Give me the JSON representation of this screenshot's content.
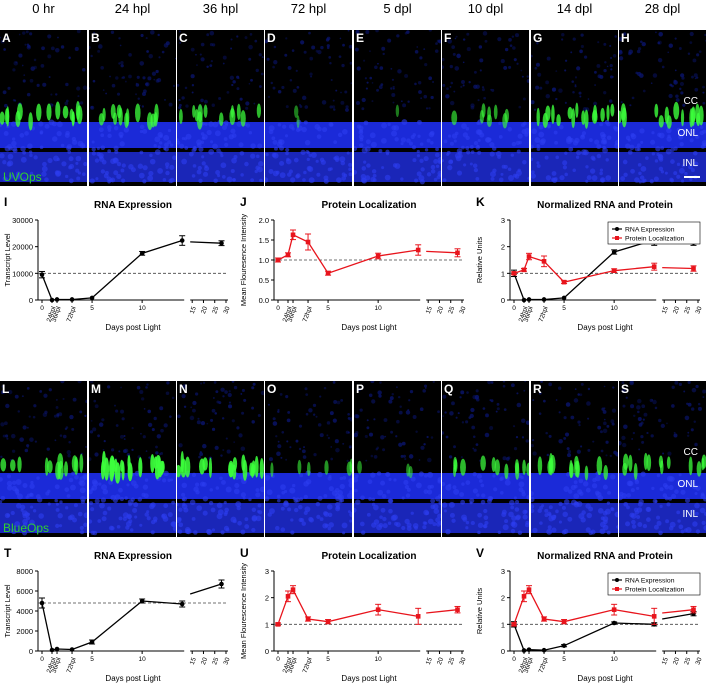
{
  "timepoints": [
    "0 hr",
    "24 hpl",
    "36 hpl",
    "72 hpl",
    "5 dpl",
    "10 dpl",
    "14 dpl",
    "28 dpl"
  ],
  "micro_rows": [
    {
      "letters": [
        "A",
        "B",
        "C",
        "D",
        "E",
        "F",
        "G",
        "H"
      ],
      "stain": "UVOps",
      "green_intensity": [
        0.7,
        0.6,
        0.55,
        0.08,
        0.05,
        0.35,
        0.7,
        0.7
      ],
      "layers": [
        "CC",
        "ONL",
        "INL"
      ]
    },
    {
      "letters": [
        "L",
        "M",
        "N",
        "O",
        "P",
        "Q",
        "R",
        "S"
      ],
      "stain": "BlueOps",
      "green_intensity": [
        0.6,
        0.95,
        0.85,
        0.25,
        0.15,
        0.55,
        0.6,
        0.6
      ],
      "layers": [
        "CC",
        "ONL",
        "INL"
      ]
    }
  ],
  "charts": [
    {
      "letter": "I",
      "chart_data": {
        "type": "line",
        "title": "RNA Expression",
        "ylabel": "Transcript Level",
        "xlabel": "Days post Light",
        "ylim": [
          0,
          30000
        ],
        "yticks": [
          "0",
          "10000",
          "20000",
          "30000"
        ],
        "baseline": 10000,
        "series": [
          {
            "color": "#000000",
            "x": [
              0,
              1,
              1.5,
              3,
              5,
              10,
              14,
              28
            ],
            "y": [
              9500,
              0,
              200,
              200,
              800,
              17500,
              22300,
              21300
            ],
            "err": [
              1200,
              0,
              0,
              0,
              0,
              700,
              1800,
              900
            ]
          }
        ]
      }
    },
    {
      "letter": "J",
      "chart_data": {
        "type": "line",
        "title": "Protein Localization",
        "ylabel": "Mean Flouresence Intensity",
        "xlabel": "Days post Light",
        "ylim": [
          0,
          2.0
        ],
        "yticks": [
          "0.0",
          "0.5",
          "1.0",
          "1.5",
          "2.0"
        ],
        "baseline": 1.0,
        "series": [
          {
            "color": "#e8141c",
            "x": [
              0,
              1,
              1.5,
              3,
              5,
              10,
              14,
              28
            ],
            "y": [
              1.0,
              1.13,
              1.63,
              1.45,
              0.67,
              1.1,
              1.25,
              1.18
            ],
            "err": [
              0.05,
              0.05,
              0.12,
              0.2,
              0.05,
              0.07,
              0.13,
              0.1
            ]
          }
        ]
      }
    },
    {
      "letter": "K",
      "chart_data": {
        "type": "line",
        "title": "Normalized RNA and Protein",
        "ylabel": "Relative Units",
        "xlabel": "Days post Light",
        "ylim": [
          0,
          3
        ],
        "yticks": [
          "0",
          "1",
          "2",
          "3"
        ],
        "baseline": 1.0,
        "legend": [
          "RNA Expression",
          "Protein Localization"
        ],
        "series": [
          {
            "name": "RNA Expression",
            "color": "#000000",
            "x": [
              0,
              1,
              1.5,
              3,
              5,
              10,
              14,
              28
            ],
            "y": [
              1.0,
              0,
              0.02,
              0.02,
              0.08,
              1.8,
              2.25,
              2.15
            ],
            "err": [
              0.12,
              0,
              0,
              0,
              0,
              0.08,
              0.2,
              0.1
            ]
          },
          {
            "name": "Protein Localization",
            "color": "#e8141c",
            "x": [
              0,
              1,
              1.5,
              3,
              5,
              10,
              14,
              28
            ],
            "y": [
              1.0,
              1.13,
              1.63,
              1.45,
              0.67,
              1.1,
              1.25,
              1.18
            ],
            "err": [
              0.05,
              0.05,
              0.12,
              0.2,
              0.05,
              0.07,
              0.13,
              0.1
            ]
          }
        ]
      }
    },
    {
      "letter": "T",
      "chart_data": {
        "type": "line",
        "title": "RNA Expression",
        "ylabel": "Transcript Level",
        "xlabel": "Days post Light",
        "ylim": [
          0,
          8000
        ],
        "yticks": [
          "0",
          "2000",
          "4000",
          "6000",
          "8000"
        ],
        "baseline": 4800,
        "series": [
          {
            "color": "#000000",
            "x": [
              0,
              1,
              1.5,
              3,
              5,
              10,
              14,
              28
            ],
            "y": [
              4800,
              100,
              200,
              150,
              900,
              5000,
              4700,
              6700
            ],
            "err": [
              500,
              0,
              0,
              0,
              200,
              200,
              300,
              400
            ]
          }
        ]
      }
    },
    {
      "letter": "U",
      "chart_data": {
        "type": "line",
        "title": "Protein Localization",
        "ylabel": "Mean Flourescence Intensity",
        "xlabel": "Days post Light",
        "ylim": [
          0,
          3
        ],
        "yticks": [
          "0",
          "1",
          "2",
          "3"
        ],
        "baseline": 1.0,
        "series": [
          {
            "color": "#e8141c",
            "x": [
              0,
              1,
              1.5,
              3,
              5,
              10,
              14,
              28
            ],
            "y": [
              1.0,
              2.05,
              2.3,
              1.2,
              1.1,
              1.55,
              1.3,
              1.55
            ],
            "err": [
              0.05,
              0.2,
              0.15,
              0.08,
              0.08,
              0.2,
              0.3,
              0.12
            ]
          }
        ]
      }
    },
    {
      "letter": "V",
      "chart_data": {
        "type": "line",
        "title": "Normalized RNA and Protein",
        "ylabel": "Relative Units",
        "xlabel": "Days post Light",
        "ylim": [
          0,
          3
        ],
        "yticks": [
          "0",
          "1",
          "2",
          "3"
        ],
        "baseline": 1.0,
        "legend": [
          "RNA Expression",
          "Protein Localization"
        ],
        "series": [
          {
            "name": "RNA Expression",
            "color": "#000000",
            "x": [
              0,
              1,
              1.5,
              3,
              5,
              10,
              14,
              28
            ],
            "y": [
              1.0,
              0.02,
              0.05,
              0.03,
              0.2,
              1.05,
              1.0,
              1.4
            ],
            "err": [
              0.1,
              0,
              0,
              0,
              0.04,
              0.04,
              0.06,
              0.08
            ]
          },
          {
            "name": "Protein Localization",
            "color": "#e8141c",
            "x": [
              0,
              1,
              1.5,
              3,
              5,
              10,
              14,
              28
            ],
            "y": [
              1.0,
              2.05,
              2.3,
              1.2,
              1.1,
              1.55,
              1.3,
              1.55
            ],
            "err": [
              0.05,
              0.2,
              0.15,
              0.08,
              0.08,
              0.2,
              0.3,
              0.12
            ]
          }
        ]
      }
    }
  ],
  "xticks": [
    "0",
    "24hpl",
    "36hpl",
    "72hpl",
    "5",
    "10",
    "15",
    "20",
    "25",
    "30"
  ],
  "colors": {
    "dapi": "#1b2ad8",
    "opsin": "#3cff3c",
    "rna": "#000000",
    "protein": "#e8141c"
  }
}
